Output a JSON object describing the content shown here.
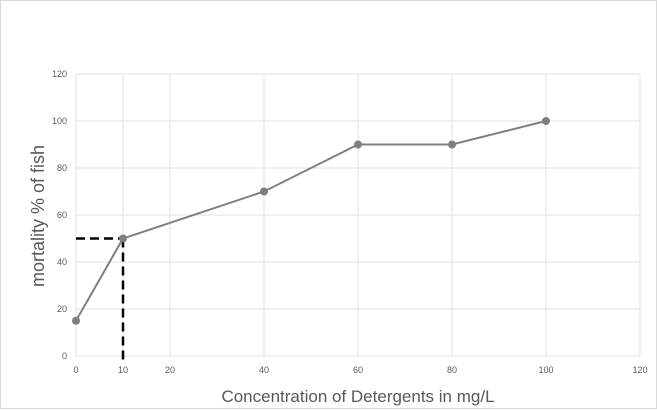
{
  "chart_data": {
    "type": "line",
    "title": "",
    "xlabel": "Concentration of Detergents in mg/L",
    "ylabel": "mortality % of fish",
    "x": [
      0,
      10,
      40,
      60,
      80,
      100
    ],
    "series": [
      {
        "values": [
          15,
          50,
          70,
          90,
          90,
          100
        ]
      }
    ],
    "xlim": [
      0,
      120
    ],
    "ylim": [
      0,
      120
    ],
    "x_ticks": [
      "0",
      "10",
      "20",
      "40",
      "60",
      "80",
      "100",
      "120"
    ],
    "y_ticks": [
      "0",
      "20",
      "40",
      "60",
      "80",
      "100",
      "120"
    ],
    "grid": true,
    "legend": "none",
    "reference_point": {
      "x": 10,
      "y": 50
    },
    "colors": {
      "series": "#7f7f7f",
      "gridline": "#e2e2e2",
      "axis_text": "#595959",
      "reference_line": "#000000"
    }
  }
}
